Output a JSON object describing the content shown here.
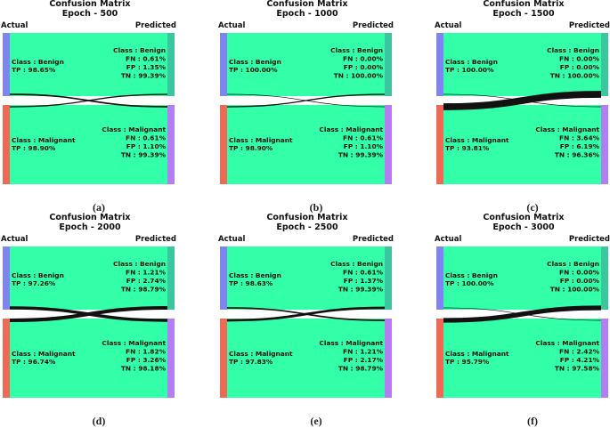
{
  "colors": {
    "benign_actual": "#7f84f0",
    "malignant_actual": "#ee6a55",
    "benign_predicted": "#3ac69f",
    "malignant_predicted": "#b37ef2",
    "flow": "#33ffa8",
    "link": "#111111",
    "text": "#111111"
  },
  "panels": [
    {
      "title": [
        "Confusion Matrix",
        "Epoch - 500"
      ],
      "actual_label": "Actual",
      "predicted_label": "Predicted",
      "caption": "(a)",
      "benign_actual": [
        "Class : Benign",
        "TP : 98.65%"
      ],
      "benign_predicted": [
        "Class : Benign",
        "FN : 0.61%",
        "FP : 1.35%",
        "TN : 99.39%"
      ],
      "malignant_actual": [
        "Class : Malignant",
        "TP : 98.90%"
      ],
      "malignant_predicted": [
        "Class : Malignant",
        "FN : 0.61%",
        "FP : 1.10%",
        "TN : 99.39%"
      ],
      "misclassified": {
        "benign_to_malignant": 1.35,
        "malignant_to_benign": 1.1
      }
    },
    {
      "title": [
        "Confusion Matrix",
        "Epoch - 1000"
      ],
      "actual_label": "Actual",
      "predicted_label": "Predicted",
      "caption": "(b)",
      "benign_actual": [
        "Class : Benign",
        "TP : 100.00%"
      ],
      "benign_predicted": [
        "Class : Benign",
        "FN : 0.00%",
        "FP : 0.00%",
        "TN : 100.00%"
      ],
      "malignant_actual": [
        "Class : Malignant",
        "TP : 98.90%"
      ],
      "malignant_predicted": [
        "Class : Malignant",
        "FN : 0.61%",
        "FP : 1.10%",
        "TN : 99.39%"
      ],
      "misclassified": {
        "benign_to_malignant": 0.0,
        "malignant_to_benign": 1.1
      }
    },
    {
      "title": [
        "Confusion Matrix",
        "Epoch - 1500"
      ],
      "actual_label": "Actual",
      "predicted_label": "Predicted",
      "caption": "(c)",
      "benign_actual": [
        "Class : Benign",
        "TP : 100.00%"
      ],
      "benign_predicted": [
        "Class : Benign",
        "FN : 0.00%",
        "FP : 0.00%",
        "TN : 100.00%"
      ],
      "malignant_actual": [
        "Class : Malignant",
        "TP : 93.81%"
      ],
      "malignant_predicted": [
        "Class : Malignant",
        "FN : 3.64%",
        "FP : 6.19%",
        "TN : 96.36%"
      ],
      "misclassified": {
        "benign_to_malignant": 0.0,
        "malignant_to_benign": 6.19
      }
    },
    {
      "title": [
        "Confusion Matrix",
        "Epoch - 2000"
      ],
      "actual_label": "Actual",
      "predicted_label": "Predicted",
      "caption": "(d)",
      "benign_actual": [
        "Class : Benign",
        "TP : 97.26%"
      ],
      "benign_predicted": [
        "Class : Benign",
        "FN : 1.21%",
        "FP : 2.74%",
        "TN : 98.79%"
      ],
      "malignant_actual": [
        "Class : Malignant",
        "TP : 96.74%"
      ],
      "malignant_predicted": [
        "Class : Malignant",
        "FN : 1.82%",
        "FP : 3.26%",
        "TN : 98.18%"
      ],
      "misclassified": {
        "benign_to_malignant": 2.74,
        "malignant_to_benign": 3.26
      }
    },
    {
      "title": [
        "Confusion Matrix",
        "Epoch - 2500"
      ],
      "actual_label": "Actual",
      "predicted_label": "Predicted",
      "caption": "(e)",
      "benign_actual": [
        "Class : Benign",
        "TP : 98.63%"
      ],
      "benign_predicted": [
        "Class : Benign",
        "FN : 0.61%",
        "FP : 1.37%",
        "TN : 99.39%"
      ],
      "malignant_actual": [
        "Class : Malignant",
        "TP : 97.83%"
      ],
      "malignant_predicted": [
        "Class : Malignant",
        "FN : 1.21%",
        "FP : 2.17%",
        "TN : 98.79%"
      ],
      "misclassified": {
        "benign_to_malignant": 1.37,
        "malignant_to_benign": 2.17
      }
    },
    {
      "title": [
        "Confusion Matrix",
        "Epoch - 3000"
      ],
      "actual_label": "Actual",
      "predicted_label": "Predicted",
      "caption": "(f)",
      "benign_actual": [
        "Class : Benign",
        "TP : 100.00%"
      ],
      "benign_predicted": [
        "Class : Benign",
        "FN : 0.00%",
        "FP : 0.00%",
        "TN : 100.00%"
      ],
      "malignant_actual": [
        "Class : Malignant",
        "TP : 95.79%"
      ],
      "malignant_predicted": [
        "Class : Malignant",
        "FN : 2.42%",
        "FP : 4.21%",
        "TN : 97.58%"
      ],
      "misclassified": {
        "benign_to_malignant": 0.0,
        "malignant_to_benign": 4.21
      }
    }
  ]
}
